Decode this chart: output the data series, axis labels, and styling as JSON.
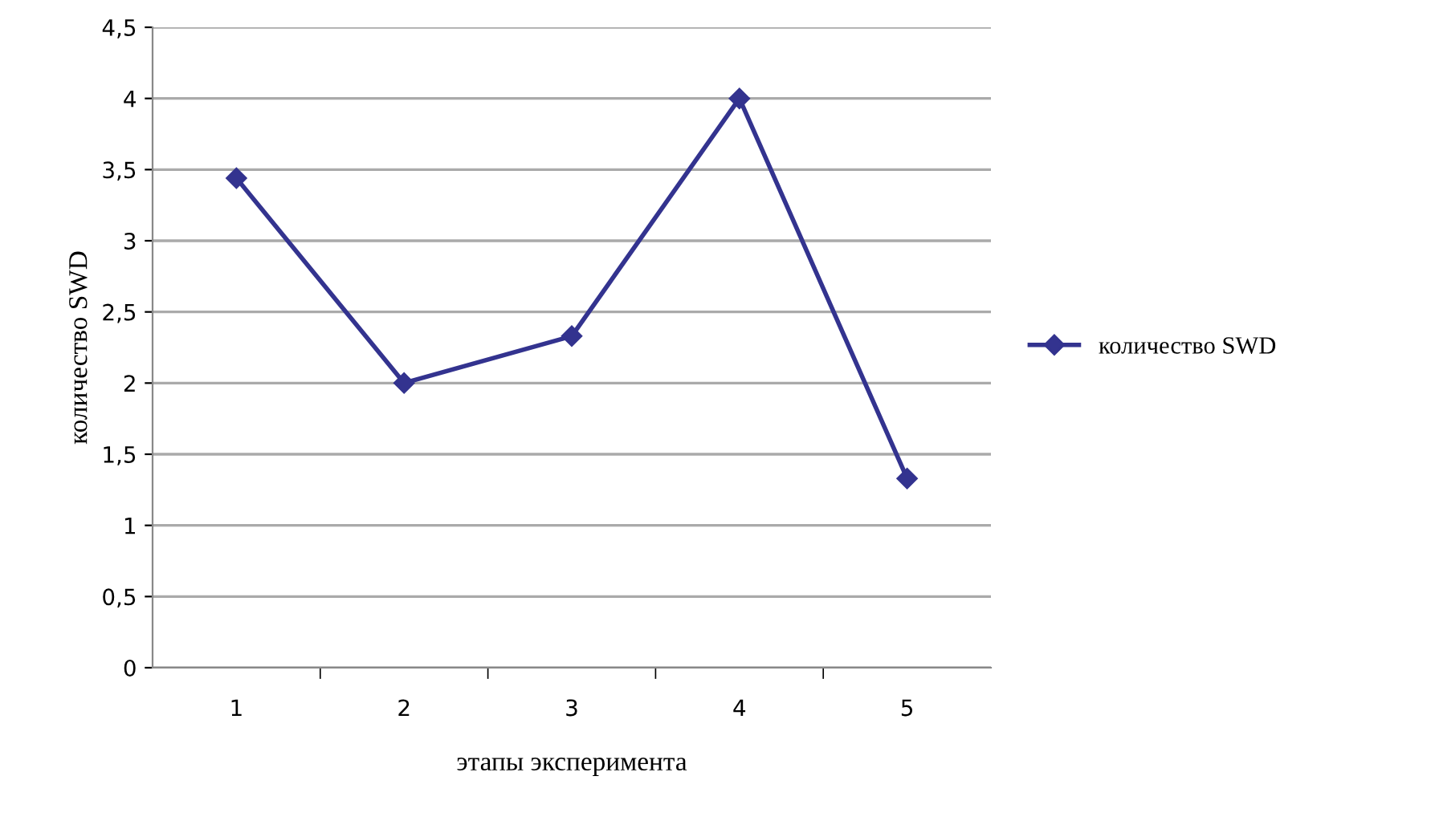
{
  "chart_data": {
    "type": "line",
    "xlabel": "этапы эксперимента",
    "ylabel": "количество SWD",
    "categories": [
      "1",
      "2",
      "3",
      "4",
      "5"
    ],
    "series": [
      {
        "name": "количество SWD",
        "color": "#33338f",
        "values": [
          3.44,
          2.0,
          2.33,
          4.0,
          1.33
        ]
      }
    ],
    "ylim": [
      0,
      4.5
    ],
    "yticks": [
      0,
      {
        "value": 0.5,
        "label": "0,5"
      },
      1,
      {
        "value": 1.5,
        "label": "1,5"
      },
      2,
      {
        "value": 2.5,
        "label": "2,5"
      },
      3,
      {
        "value": 3.5,
        "label": "3,5"
      },
      4,
      {
        "value": 4.5,
        "label": "4,5"
      }
    ],
    "grid": "y",
    "legend": "right",
    "marker": "diamond",
    "line_style": "solid"
  }
}
